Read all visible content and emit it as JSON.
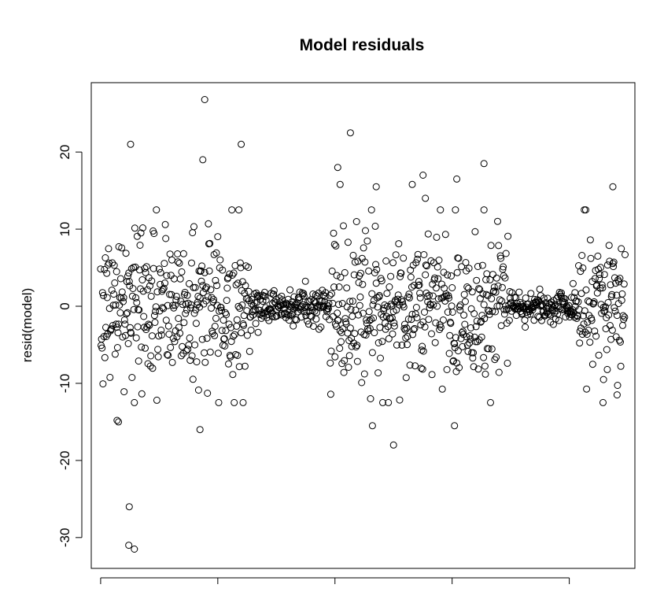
{
  "chart_data": {
    "type": "scatter",
    "title": "Model residuals",
    "xlabel": "",
    "ylabel": "resid(model)",
    "ylim": [
      -34,
      29
    ],
    "xlim": [
      -20,
      1140
    ],
    "x_ticks": [
      0,
      250,
      500,
      750,
      1000
    ],
    "x_tick_labels_visible": false,
    "y_ticks": [
      -30,
      -20,
      -10,
      0,
      10,
      20
    ],
    "y_tick_labels": [
      "-30",
      "-20",
      "-10",
      "0",
      "10",
      "20"
    ],
    "marker": "open-circle",
    "grid": false,
    "legend": "none",
    "n_points": 1120,
    "colors": {
      "points": "#000000",
      "frame": "#000000",
      "background": "#ffffff"
    },
    "segments": [
      {
        "x_start": 0,
        "x_end": 320,
        "center": 0,
        "spread": 5.2
      },
      {
        "x_start": 320,
        "x_end": 490,
        "center": 0,
        "spread": 1.2
      },
      {
        "x_start": 490,
        "x_end": 870,
        "center": 0,
        "spread": 5.0
      },
      {
        "x_start": 870,
        "x_end": 1020,
        "center": 0,
        "spread": 1.0
      },
      {
        "x_start": 1020,
        "x_end": 1120,
        "center": 0,
        "spread": 5.0
      }
    ],
    "outliers": [
      {
        "x": 72,
        "y": -31.5
      },
      {
        "x": 60,
        "y": -31
      },
      {
        "x": 61,
        "y": -26
      },
      {
        "x": 35,
        "y": -14.8
      },
      {
        "x": 38,
        "y": -15.0
      },
      {
        "x": 64,
        "y": 21
      },
      {
        "x": 222,
        "y": 26.8
      },
      {
        "x": 218,
        "y": 19
      },
      {
        "x": 300,
        "y": 21
      },
      {
        "x": 212,
        "y": -16
      },
      {
        "x": 304,
        "y": -12.5
      },
      {
        "x": 533,
        "y": 22.5
      },
      {
        "x": 506,
        "y": 18
      },
      {
        "x": 511,
        "y": 15.8
      },
      {
        "x": 588,
        "y": 15.5
      },
      {
        "x": 625,
        "y": -18
      },
      {
        "x": 580,
        "y": -15.5
      },
      {
        "x": 688,
        "y": 17
      },
      {
        "x": 693,
        "y": 14
      },
      {
        "x": 665,
        "y": 15.8
      },
      {
        "x": 760,
        "y": 16.5
      },
      {
        "x": 755,
        "y": -15.5
      },
      {
        "x": 818,
        "y": 18.5
      },
      {
        "x": 818,
        "y": 12.5
      },
      {
        "x": 1093,
        "y": 15.5
      },
      {
        "x": 1102,
        "y": -11.5
      },
      {
        "x": 1073,
        "y": -9.5
      }
    ]
  }
}
